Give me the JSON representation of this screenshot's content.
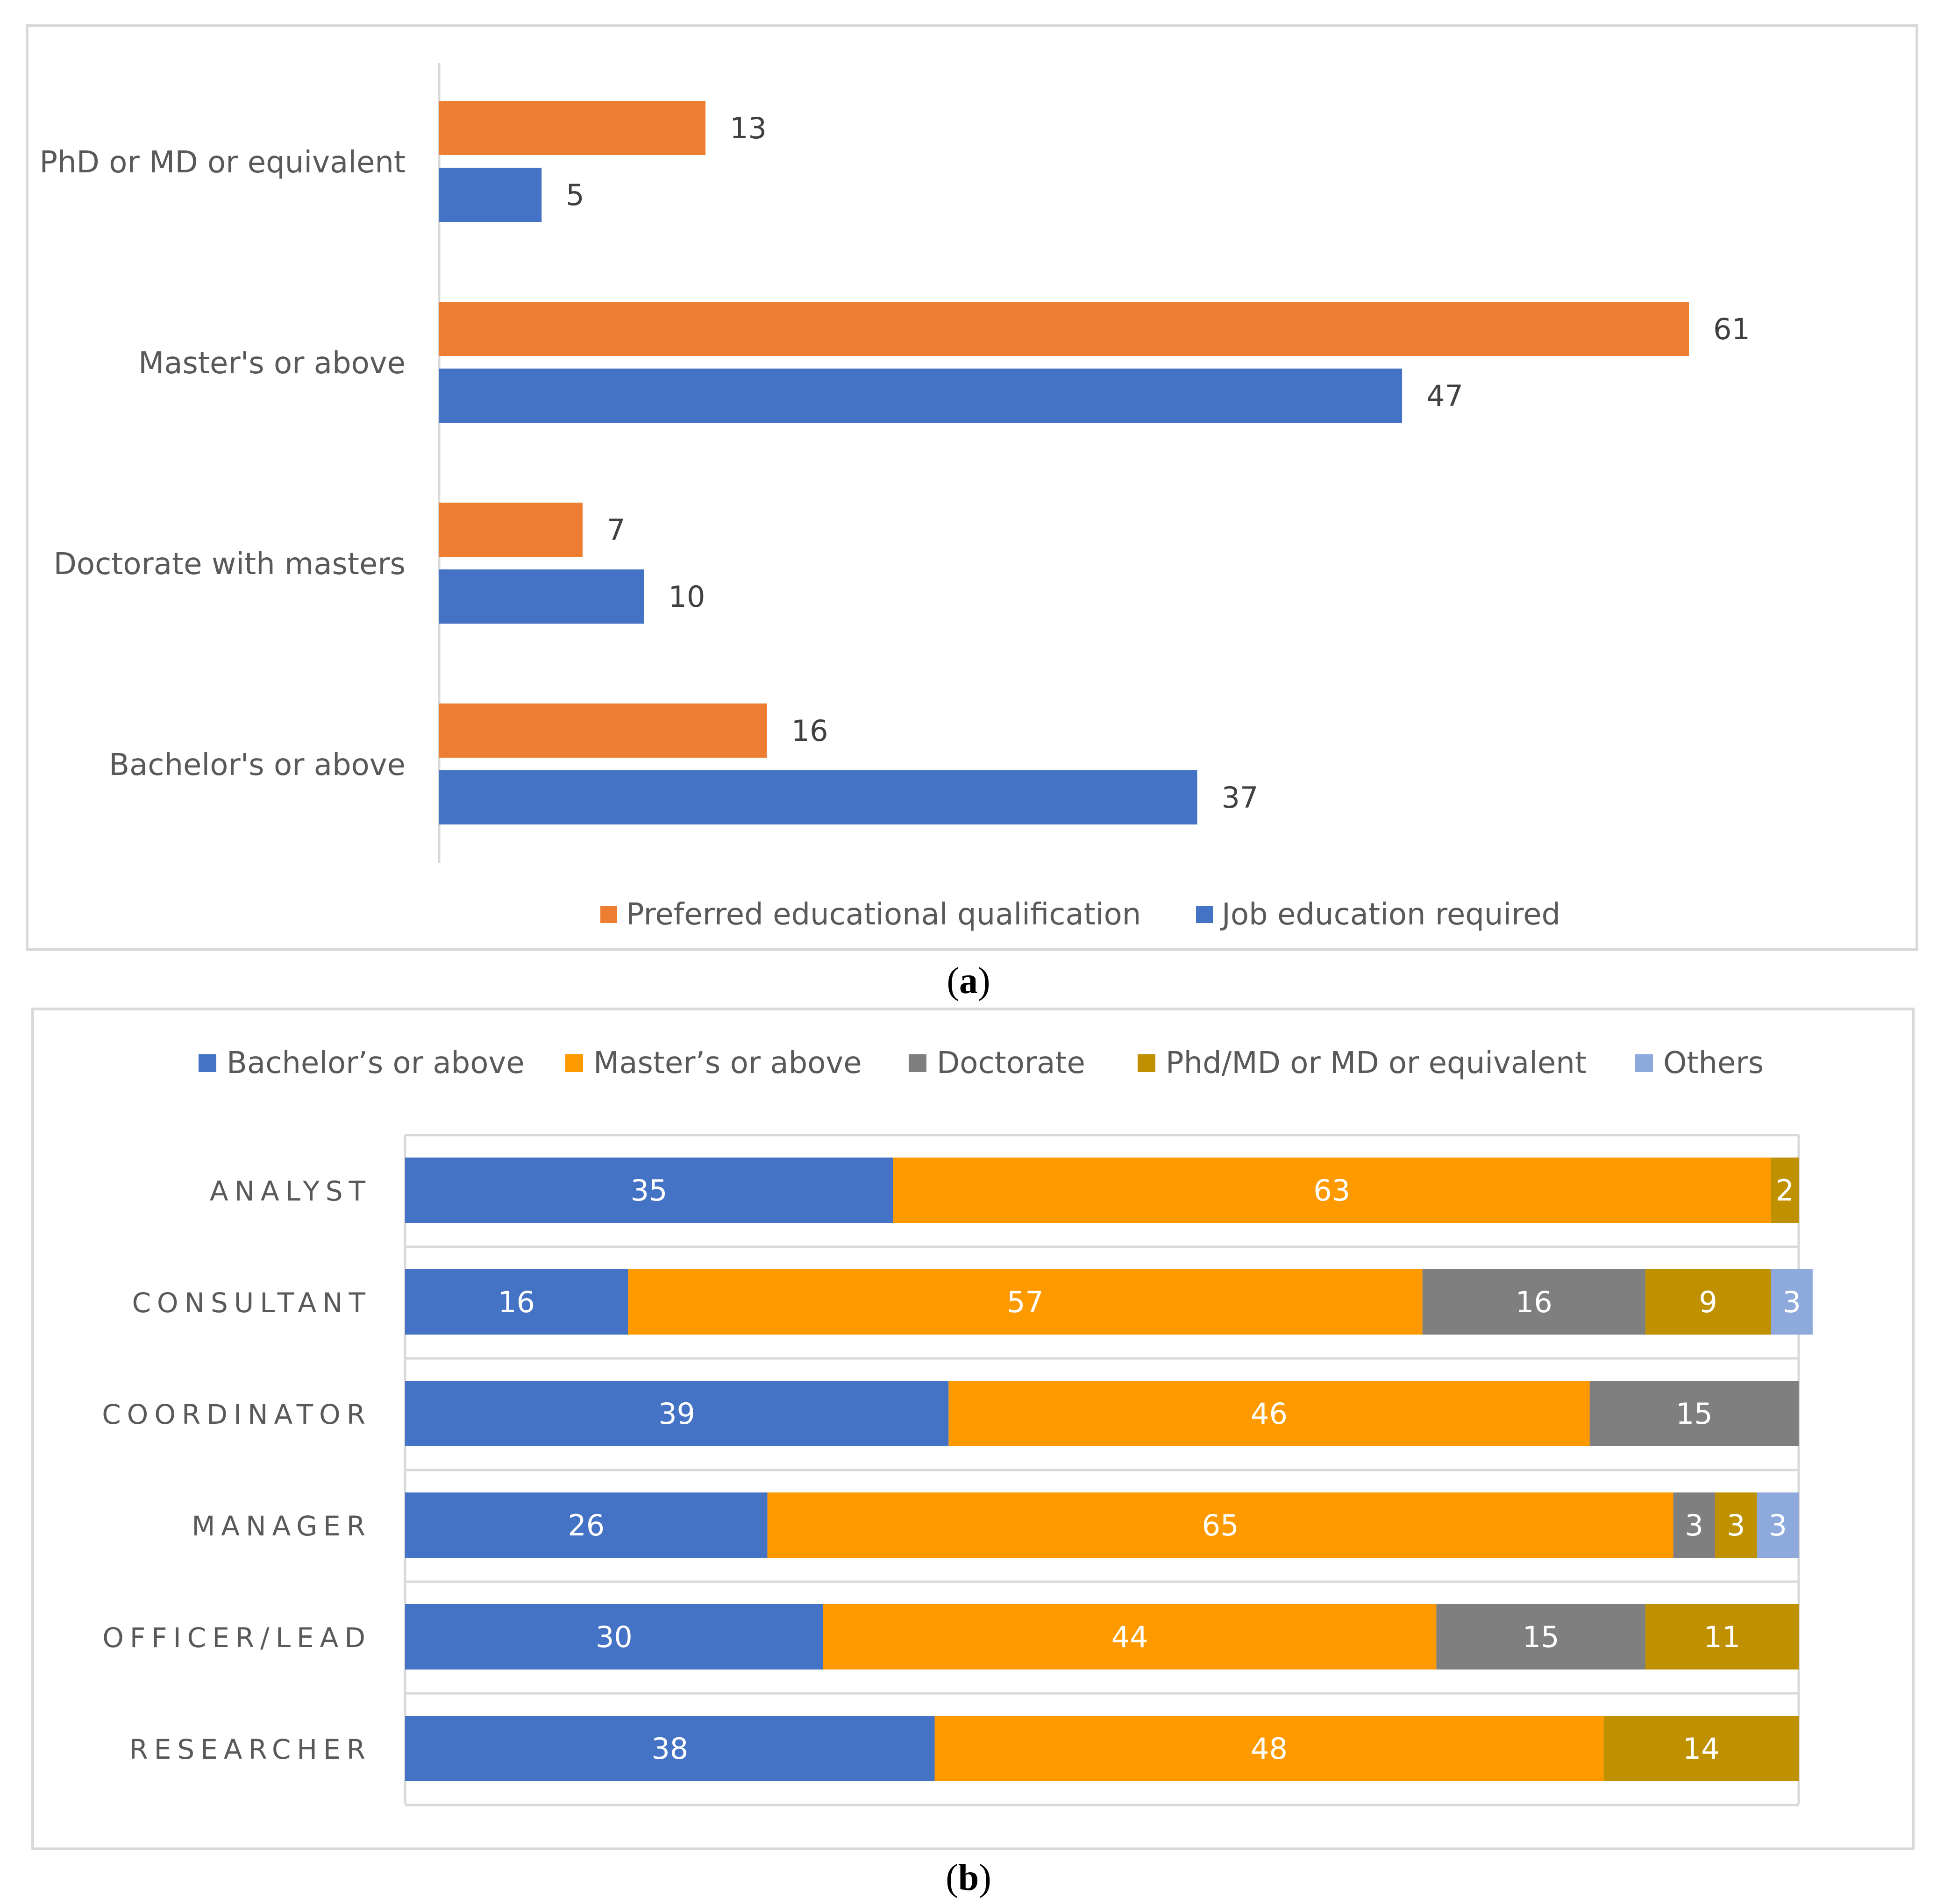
{
  "chart_data": [
    {
      "type": "bar",
      "orientation": "horizontal",
      "panel": "a",
      "categories": [
        "PhD or MD or equivalent",
        "Master's or above",
        "Doctorate with masters",
        "Bachelor's or above"
      ],
      "series": [
        {
          "name": "Preferred educational qualification",
          "color": "#ED7D31",
          "values": [
            13,
            61,
            7,
            16
          ]
        },
        {
          "name": "Job education required",
          "color": "#4472C4",
          "values": [
            5,
            47,
            10,
            37
          ]
        }
      ],
      "xlim": [
        0,
        61
      ],
      "legend_position": "bottom"
    },
    {
      "type": "bar",
      "orientation": "horizontal",
      "stacked": true,
      "panel": "b",
      "categories": [
        "ANALYST",
        "CONSULTANT",
        "COORDINATOR",
        "MANAGER",
        "OFFICER/LEAD",
        "RESEARCHER"
      ],
      "series": [
        {
          "name": "Bachelor’s or above",
          "color": "#4472C4",
          "values": [
            35,
            16,
            39,
            26,
            30,
            38
          ]
        },
        {
          "name": "Master’s or above",
          "color": "#FF9900",
          "values": [
            63,
            57,
            46,
            65,
            44,
            48
          ]
        },
        {
          "name": "Doctorate",
          "color": "#7F7F7F",
          "values": [
            0,
            16,
            15,
            3,
            15,
            0
          ]
        },
        {
          "name": "Phd/MD or MD or equivalent",
          "color": "#BF9000",
          "values": [
            2,
            9,
            0,
            3,
            11,
            14
          ]
        },
        {
          "name": "Others",
          "color": "#8EA9DB",
          "values": [
            0,
            3,
            0,
            3,
            0,
            0
          ]
        }
      ],
      "xlim": [
        0,
        100
      ],
      "legend_position": "top"
    }
  ],
  "captions": {
    "a": "a",
    "b": "b"
  }
}
